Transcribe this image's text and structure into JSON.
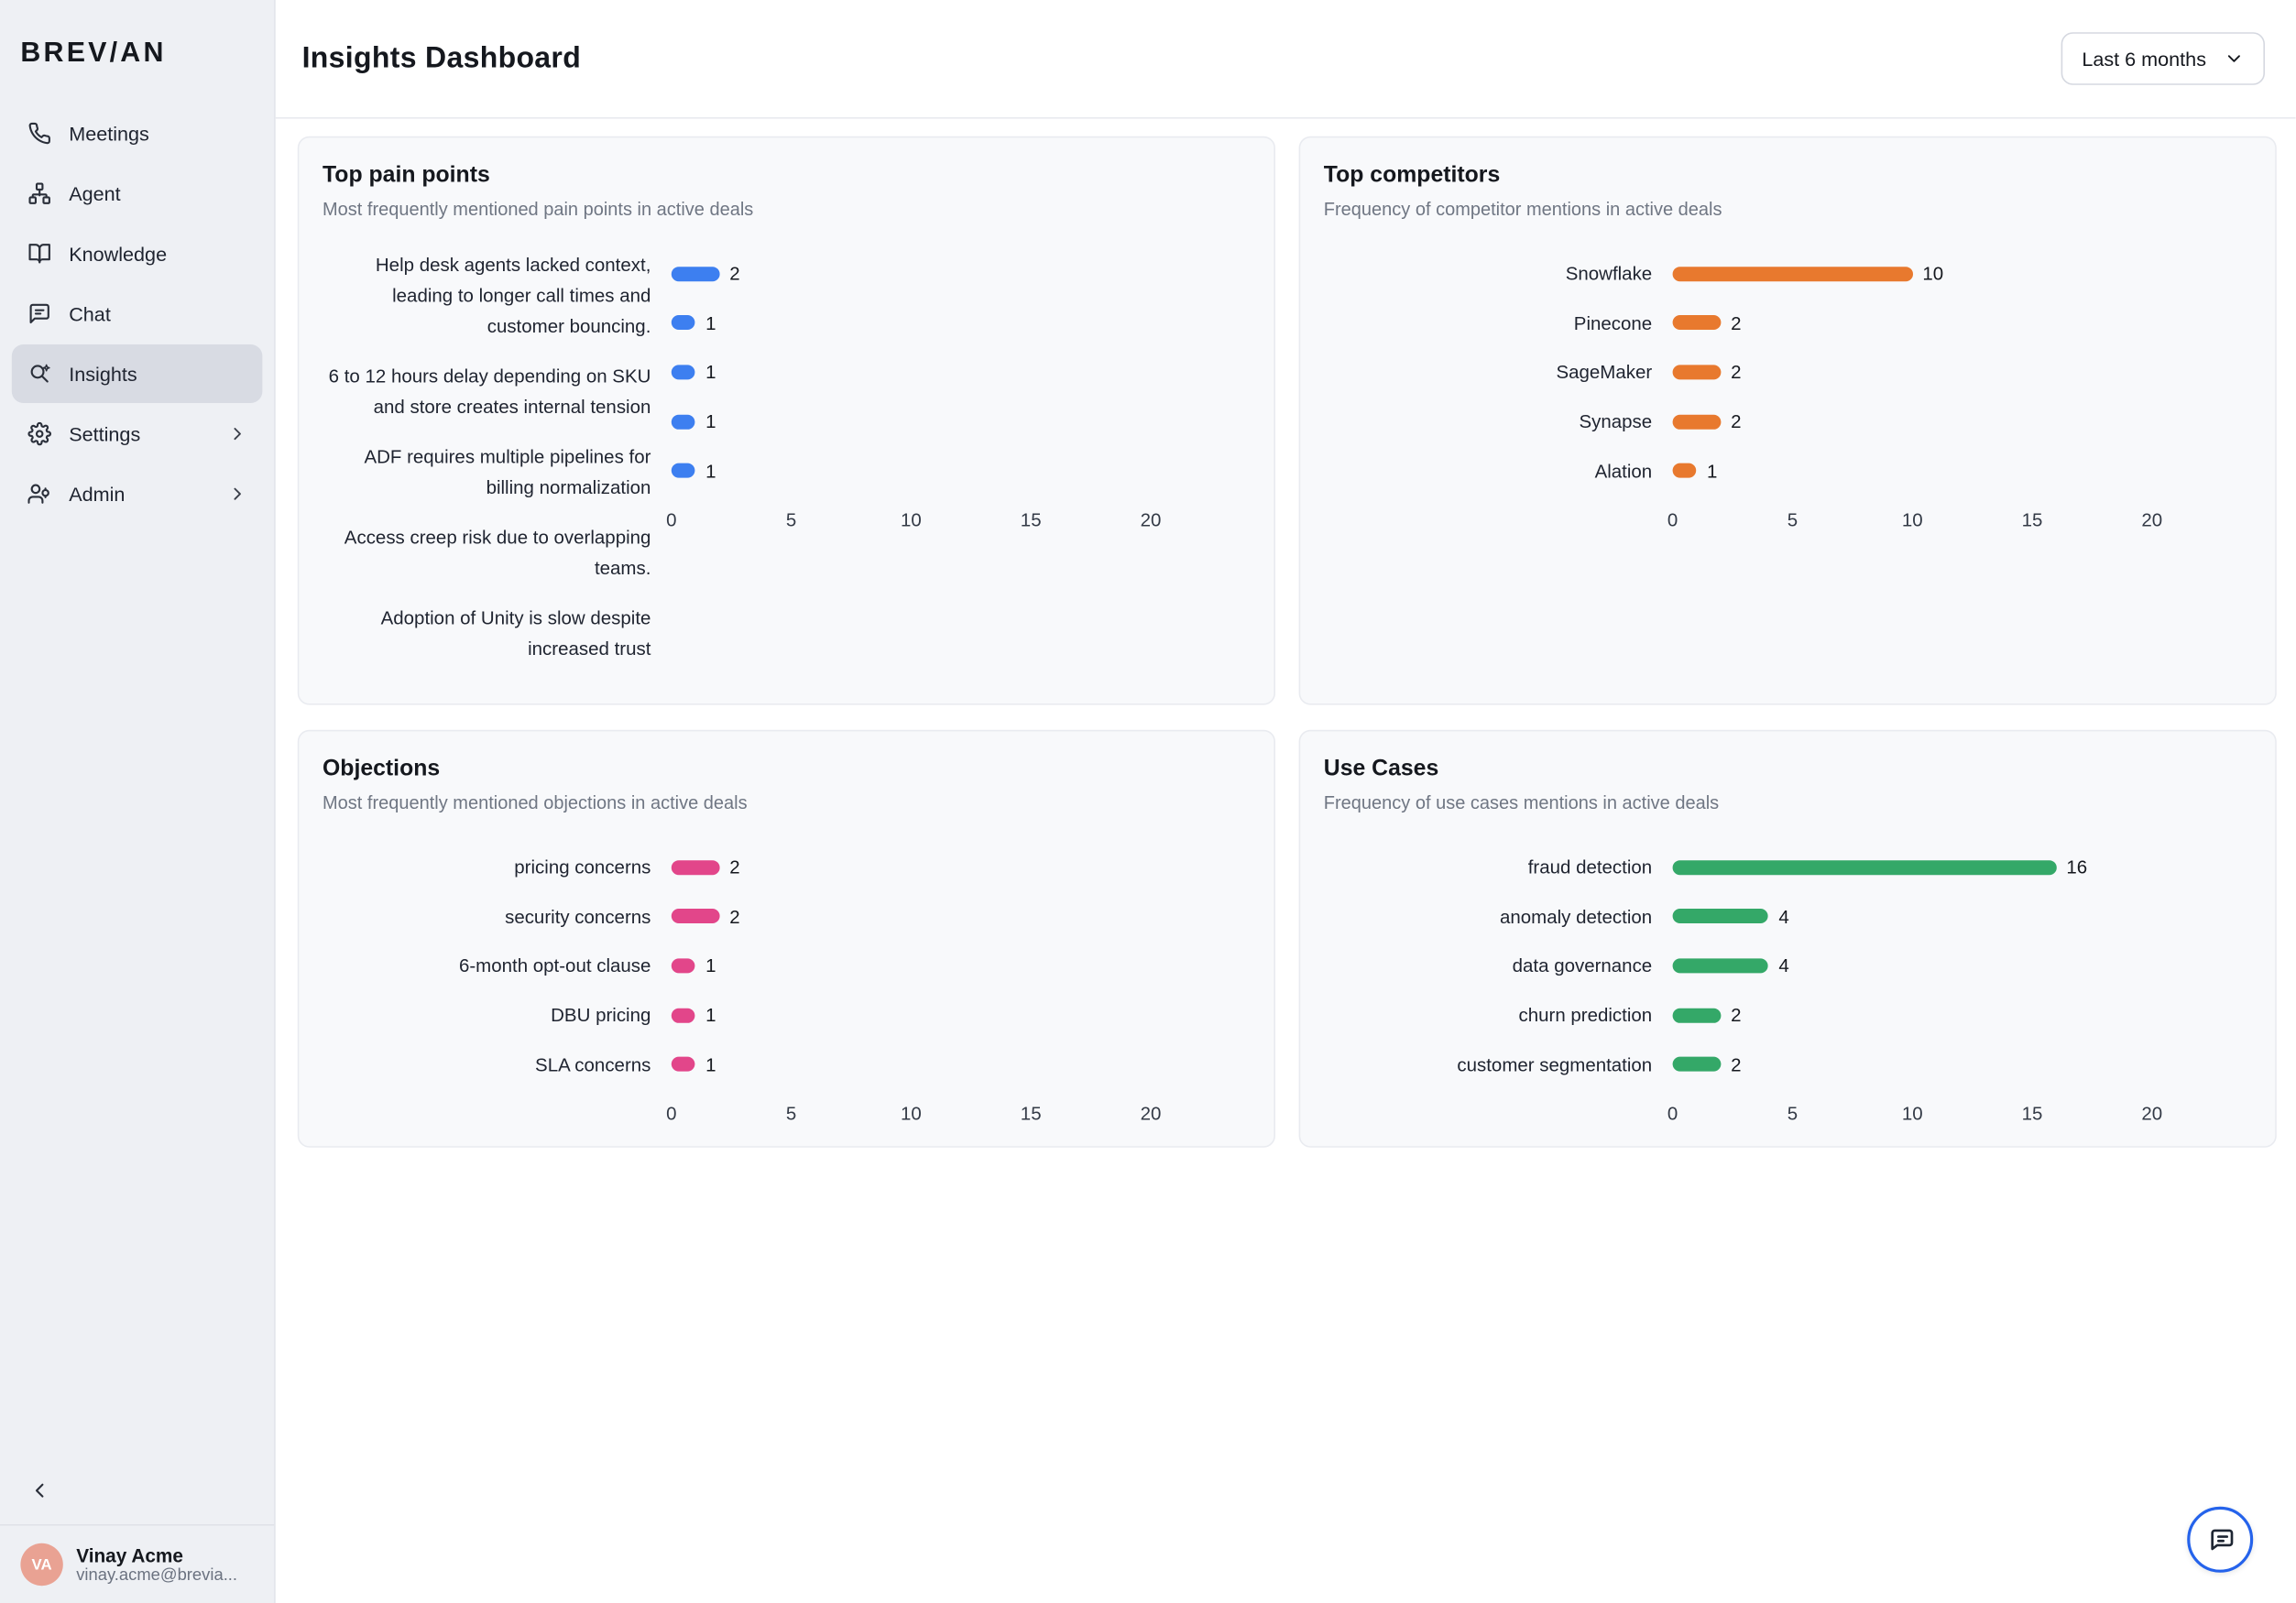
{
  "sidebar": {
    "logo": "BREV/AN",
    "items": [
      {
        "label": "Meetings",
        "icon": "phone-icon"
      },
      {
        "label": "Agent",
        "icon": "agent-icon"
      },
      {
        "label": "Knowledge",
        "icon": "knowledge-icon"
      },
      {
        "label": "Chat",
        "icon": "chat-icon"
      },
      {
        "label": "Insights",
        "icon": "insights-icon"
      },
      {
        "label": "Settings",
        "icon": "settings-icon"
      },
      {
        "label": "Admin",
        "icon": "admin-icon"
      }
    ],
    "user": {
      "initials": "VA",
      "name": "Vinay Acme",
      "email": "vinay.acme@brevia..."
    }
  },
  "header": {
    "title": "Insights Dashboard",
    "time_range": "Last 6 months"
  },
  "colors": {
    "accent_blue": "#2563eb",
    "pain_points_bar": "#3d7ff0",
    "competitors_bar": "#e8792e",
    "objections_bar": "#e2468a",
    "use_cases_bar": "#34a868",
    "sidebar_bg": "#eef0f4",
    "card_bg": "#f8f9fb"
  },
  "chart_data": [
    {
      "type": "bar",
      "orientation": "horizontal",
      "title": "Top pain points",
      "subtitle": "Most frequently mentioned pain points in active deals",
      "color": "#3d7ff0",
      "categories": [
        "Help desk agents lacked context, leading to longer call times and customer bouncing.",
        "6 to 12 hours delay depending on SKU and store creates internal tension",
        "ADF requires multiple pipelines for billing normalization",
        "Access creep risk due to overlapping teams.",
        "Adoption of Unity is slow despite increased trust"
      ],
      "values": [
        2,
        1,
        1,
        1,
        1
      ],
      "xlim": [
        0,
        20
      ],
      "xticks": [
        0,
        5,
        10,
        15,
        20
      ],
      "grid": false,
      "label_wrap": true
    },
    {
      "type": "bar",
      "orientation": "horizontal",
      "title": "Top competitors",
      "subtitle": "Frequency of competitor mentions in active deals",
      "color": "#e8792e",
      "categories": [
        "Snowflake",
        "Pinecone",
        "SageMaker",
        "Synapse",
        "Alation"
      ],
      "values": [
        10,
        2,
        2,
        2,
        1
      ],
      "xlim": [
        0,
        20
      ],
      "xticks": [
        0,
        5,
        10,
        15,
        20
      ],
      "grid": false,
      "label_wrap": false
    },
    {
      "type": "bar",
      "orientation": "horizontal",
      "title": "Objections",
      "subtitle": "Most frequently mentioned objections in active deals",
      "color": "#e2468a",
      "categories": [
        "pricing concerns",
        "security concerns",
        "6-month opt-out clause",
        "DBU pricing",
        "SLA concerns"
      ],
      "values": [
        2,
        2,
        1,
        1,
        1
      ],
      "xlim": [
        0,
        20
      ],
      "xticks": [
        0,
        5,
        10,
        15,
        20
      ],
      "grid": false,
      "label_wrap": false
    },
    {
      "type": "bar",
      "orientation": "horizontal",
      "title": "Use Cases",
      "subtitle": "Frequency of use cases mentions in active deals",
      "color": "#34a868",
      "categories": [
        "fraud detection",
        "anomaly detection",
        "data governance",
        "churn prediction",
        "customer segmentation"
      ],
      "values": [
        16,
        4,
        4,
        2,
        2
      ],
      "xlim": [
        0,
        20
      ],
      "xticks": [
        0,
        5,
        10,
        15,
        20
      ],
      "grid": false,
      "label_wrap": false
    }
  ]
}
